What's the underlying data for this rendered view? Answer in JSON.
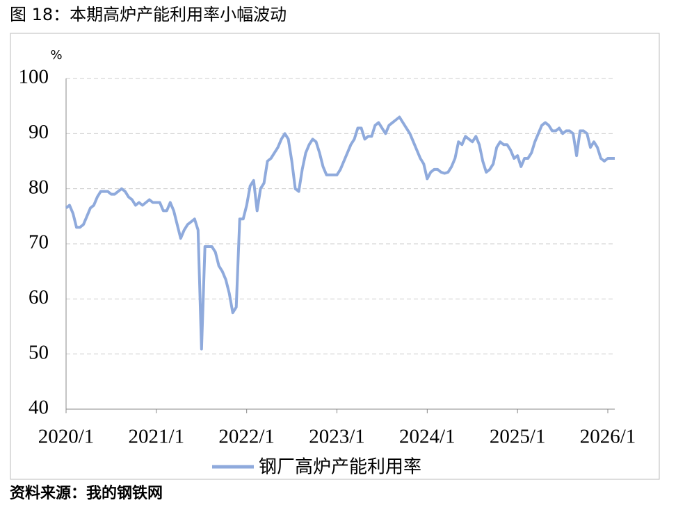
{
  "chart_data": {
    "type": "line",
    "title": "图 18：本期高炉产能利用率小幅波动",
    "source": "资料来源：我的钢铁网",
    "y_label": "%",
    "categories": [
      "2020/1",
      null,
      null,
      null,
      null,
      null,
      null,
      null,
      null,
      null,
      null,
      null,
      null,
      null,
      null,
      null,
      null,
      null,
      null,
      null,
      null,
      null,
      null,
      null,
      null,
      null,
      "2021/1",
      null,
      null,
      null,
      null,
      null,
      null,
      null,
      null,
      null,
      null,
      null,
      null,
      null,
      null,
      null,
      null,
      null,
      null,
      null,
      null,
      null,
      null,
      null,
      null,
      null,
      "2022/1",
      null,
      null,
      null,
      null,
      null,
      null,
      null,
      null,
      null,
      null,
      null,
      null,
      null,
      null,
      null,
      null,
      null,
      null,
      null,
      null,
      null,
      null,
      null,
      null,
      null,
      "2023/1",
      null,
      null,
      null,
      null,
      null,
      null,
      null,
      null,
      null,
      null,
      null,
      null,
      null,
      null,
      null,
      null,
      null,
      null,
      null,
      null,
      null,
      null,
      null,
      null,
      null,
      "2024/1",
      null,
      null,
      null,
      null,
      null,
      null,
      null,
      null,
      null,
      null,
      null,
      null,
      null,
      null,
      null,
      null,
      null,
      null,
      null,
      null,
      null,
      null,
      null,
      null,
      null,
      "2025/1",
      null,
      null,
      null,
      null,
      null,
      null,
      null,
      null,
      null,
      null,
      null,
      null,
      null,
      null,
      null,
      null,
      null,
      null,
      null,
      null,
      null,
      null,
      null,
      null,
      null,
      "2026/1",
      null,
      null
    ],
    "series": [
      {
        "name": "钢厂高炉产能利用率",
        "color": "#8faadc",
        "values": [
          76.5,
          77,
          75.5,
          73,
          73,
          73.5,
          75,
          76.5,
          77,
          78.5,
          79.5,
          79.5,
          79.5,
          79,
          79,
          79.5,
          80,
          79.5,
          78.5,
          78,
          77,
          77.5,
          77,
          77.5,
          78,
          77.5,
          77.5,
          77.5,
          76,
          76,
          77.5,
          76,
          73.5,
          71,
          72.5,
          73.5,
          74,
          74.5,
          72.5,
          50.9,
          69.5,
          69.5,
          69.5,
          68.5,
          66,
          65,
          63.5,
          61,
          57.5,
          58.5,
          74.5,
          74.5,
          77,
          80.5,
          81.5,
          76,
          80,
          81,
          85,
          85.5,
          86.5,
          87.5,
          89,
          90,
          89,
          85,
          80,
          79.5,
          83.5,
          86.5,
          88,
          89,
          88.5,
          86.5,
          84,
          82.5,
          82.5,
          82.5,
          82.5,
          83.5,
          85,
          86.5,
          88,
          89,
          91,
          91,
          89,
          89.5,
          89.5,
          91.5,
          92,
          91,
          90,
          91.5,
          92,
          92.5,
          93,
          92,
          91,
          90,
          88.5,
          87,
          85.5,
          84.5,
          81.8,
          83,
          83.5,
          83.5,
          83,
          82.8,
          83,
          84,
          85.5,
          88.5,
          88,
          89.5,
          89,
          88.5,
          89.5,
          88,
          85,
          83,
          83.5,
          84.5,
          87.5,
          88.5,
          88,
          88,
          87,
          85.5,
          86,
          84,
          85.5,
          85.5,
          86.5,
          88.5,
          90,
          91.5,
          92,
          91.5,
          90.5,
          90.5,
          91,
          90,
          90.5,
          90.5,
          90,
          86,
          90.5,
          90.5,
          90,
          87.5,
          88.5,
          87.5,
          85.5,
          85,
          85.5,
          85.5,
          85.5
        ]
      }
    ],
    "ylim": [
      40,
      100
    ],
    "yticks": [
      40,
      50,
      60,
      70,
      80,
      90,
      100
    ],
    "grid": true
  }
}
